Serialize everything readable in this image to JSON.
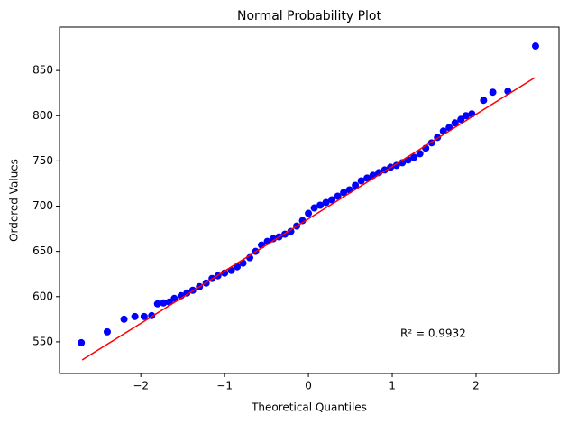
{
  "chart_data": {
    "type": "scatter",
    "title": "Normal Probability Plot",
    "x_label": "Theoretical Quantiles",
    "y_label": "Ordered Values",
    "annotation": "R² = 0.9932",
    "xlim": [
      -2.97,
      2.99
    ],
    "ylim": [
      515,
      898
    ],
    "xticks": [
      {
        "value": -2,
        "label": "−2"
      },
      {
        "value": -1,
        "label": "−1"
      },
      0,
      1,
      2
    ],
    "yticks": [
      550,
      600,
      650,
      700,
      750,
      800,
      850
    ],
    "points": {
      "color": "#0000ff",
      "x": [
        -2.71,
        -2.4,
        -2.2,
        -2.07,
        -1.96,
        -1.87,
        -1.8,
        -1.73,
        -1.66,
        -1.6,
        -1.52,
        -1.45,
        -1.38,
        -1.3,
        -1.22,
        -1.15,
        -1.08,
        -1.0,
        -0.92,
        -0.85,
        -0.78,
        -0.7,
        -0.63,
        -0.56,
        -0.49,
        -0.42,
        -0.35,
        -0.28,
        -0.21,
        -0.14,
        -0.07,
        0,
        0.07,
        0.14,
        0.21,
        0.28,
        0.35,
        0.42,
        0.49,
        0.56,
        0.63,
        0.7,
        0.77,
        0.84,
        0.91,
        0.98,
        1.05,
        1.12,
        1.19,
        1.26,
        1.33,
        1.4,
        1.47,
        1.54,
        1.61,
        1.68,
        1.75,
        1.82,
        1.88,
        1.95,
        2.09,
        2.2,
        2.38,
        2.71
      ],
      "values": [
        549,
        561,
        575,
        578,
        578,
        579,
        592,
        593,
        594,
        598,
        601,
        604,
        607,
        611,
        615,
        620,
        623,
        626,
        629,
        633,
        637,
        643,
        650,
        657,
        661,
        664,
        666,
        669,
        672,
        678,
        684,
        692,
        698,
        701,
        704,
        707,
        711,
        715,
        718,
        723,
        728,
        731,
        734,
        737,
        740,
        743,
        745,
        748,
        751,
        754,
        758,
        764,
        770,
        776,
        783,
        787,
        792,
        796,
        800,
        802,
        817,
        826,
        827,
        877
      ]
    },
    "fit_line": {
      "color": "#ff0000",
      "x": [
        -2.7,
        2.7
      ],
      "values": [
        530,
        842
      ]
    }
  }
}
